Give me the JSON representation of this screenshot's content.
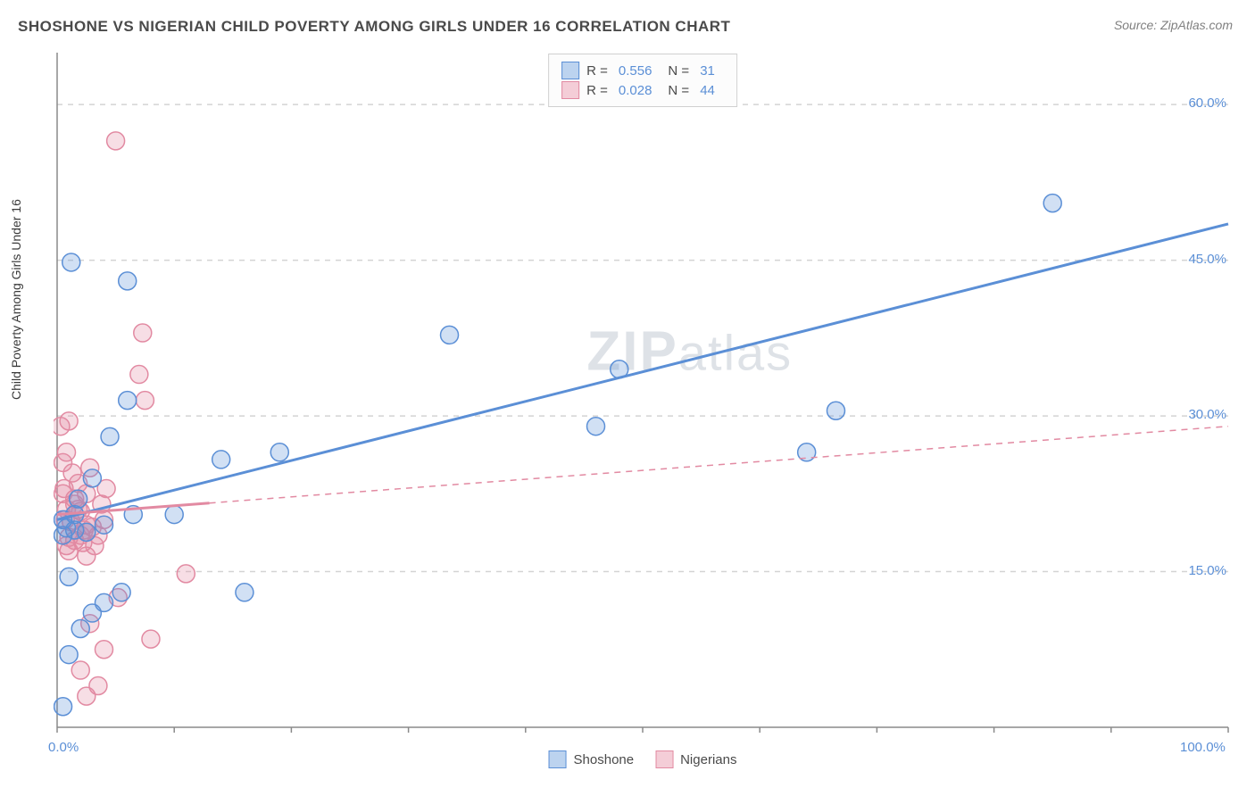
{
  "title": "SHOSHONE VS NIGERIAN CHILD POVERTY AMONG GIRLS UNDER 16 CORRELATION CHART",
  "source": "Source: ZipAtlas.com",
  "y_axis_label": "Child Poverty Among Girls Under 16",
  "watermark": {
    "bold": "ZIP",
    "light": "atlas"
  },
  "chart": {
    "type": "scatter",
    "background_color": "#ffffff",
    "grid_color": "#d4d4d4",
    "axis_color": "#8a8a8a",
    "tick_label_color": "#5b8fd6",
    "title_color": "#4a4a4a",
    "title_fontsize": 17,
    "label_fontsize": 14,
    "tick_fontsize": 15,
    "xlim": [
      0,
      100
    ],
    "ylim": [
      0,
      65
    ],
    "y_gridlines": [
      15,
      30,
      45,
      60,
      65.5
    ],
    "y_tick_labels": [
      {
        "value": 15,
        "label": "15.0%"
      },
      {
        "value": 30,
        "label": "30.0%"
      },
      {
        "value": 45,
        "label": "45.0%"
      },
      {
        "value": 60,
        "label": "60.0%"
      }
    ],
    "x_ticks": [
      0,
      10,
      20,
      30,
      40,
      50,
      60,
      70,
      80,
      90,
      100
    ],
    "x_tick_labels": [
      {
        "value": 0,
        "label": "0.0%"
      },
      {
        "value": 100,
        "label": "100.0%"
      }
    ],
    "marker_radius": 10,
    "marker_stroke_width": 1.5,
    "marker_fill_opacity": 0.28,
    "line_width": 3,
    "series": [
      {
        "name": "Shoshone",
        "color": "#5b8fd6",
        "fill": "#bcd3ef",
        "r_value": "0.556",
        "n_value": "31",
        "trendline": {
          "x1": 0,
          "y1": 20.0,
          "x2": 100,
          "y2": 48.5,
          "solid_until_x": 100
        },
        "points": [
          {
            "x": 0.5,
            "y": 2.0
          },
          {
            "x": 1.0,
            "y": 7.0
          },
          {
            "x": 2.0,
            "y": 9.5
          },
          {
            "x": 3.0,
            "y": 11.0
          },
          {
            "x": 4.0,
            "y": 12.0
          },
          {
            "x": 5.5,
            "y": 13.0
          },
          {
            "x": 1.0,
            "y": 14.5
          },
          {
            "x": 0.5,
            "y": 18.5
          },
          {
            "x": 1.5,
            "y": 19.0
          },
          {
            "x": 0.5,
            "y": 20.0
          },
          {
            "x": 4.0,
            "y": 19.5
          },
          {
            "x": 3.0,
            "y": 24.0
          },
          {
            "x": 1.2,
            "y": 44.8
          },
          {
            "x": 6.0,
            "y": 43.0
          },
          {
            "x": 6.0,
            "y": 31.5
          },
          {
            "x": 4.5,
            "y": 28.0
          },
          {
            "x": 6.5,
            "y": 20.5
          },
          {
            "x": 10.0,
            "y": 20.5
          },
          {
            "x": 16.0,
            "y": 13.0
          },
          {
            "x": 14.0,
            "y": 25.8
          },
          {
            "x": 19.0,
            "y": 26.5
          },
          {
            "x": 33.5,
            "y": 37.8
          },
          {
            "x": 46.0,
            "y": 29.0
          },
          {
            "x": 48.0,
            "y": 34.5
          },
          {
            "x": 64.0,
            "y": 26.5
          },
          {
            "x": 66.5,
            "y": 30.5
          },
          {
            "x": 85.0,
            "y": 50.5
          },
          {
            "x": 1.8,
            "y": 22.0
          },
          {
            "x": 2.5,
            "y": 18.8
          },
          {
            "x": 1.5,
            "y": 20.5
          },
          {
            "x": 0.8,
            "y": 19.2
          }
        ]
      },
      {
        "name": "Nigerians",
        "color": "#e28aa2",
        "fill": "#f4cdd7",
        "r_value": "0.028",
        "n_value": "44",
        "trendline": {
          "x1": 0,
          "y1": 20.5,
          "x2": 100,
          "y2": 29.0,
          "solid_until_x": 13
        },
        "points": [
          {
            "x": 2.5,
            "y": 3.0
          },
          {
            "x": 3.5,
            "y": 4.0
          },
          {
            "x": 2.0,
            "y": 5.5
          },
          {
            "x": 4.0,
            "y": 7.5
          },
          {
            "x": 8.0,
            "y": 8.5
          },
          {
            "x": 2.8,
            "y": 10.0
          },
          {
            "x": 5.2,
            "y": 12.5
          },
          {
            "x": 11.0,
            "y": 14.8
          },
          {
            "x": 0.8,
            "y": 17.5
          },
          {
            "x": 1.5,
            "y": 18.0
          },
          {
            "x": 2.3,
            "y": 19.0
          },
          {
            "x": 3.0,
            "y": 19.3
          },
          {
            "x": 4.0,
            "y": 20.0
          },
          {
            "x": 2.0,
            "y": 20.8
          },
          {
            "x": 0.8,
            "y": 21.0
          },
          {
            "x": 1.5,
            "y": 22.0
          },
          {
            "x": 2.8,
            "y": 25.0
          },
          {
            "x": 0.5,
            "y": 25.5
          },
          {
            "x": 0.8,
            "y": 26.5
          },
          {
            "x": 1.3,
            "y": 24.5
          },
          {
            "x": 1.8,
            "y": 23.5
          },
          {
            "x": 0.6,
            "y": 23.0
          },
          {
            "x": 0.3,
            "y": 29.0
          },
          {
            "x": 1.0,
            "y": 29.5
          },
          {
            "x": 7.5,
            "y": 31.5
          },
          {
            "x": 7.0,
            "y": 34.0
          },
          {
            "x": 7.3,
            "y": 38.0
          },
          {
            "x": 5.0,
            "y": 56.5
          },
          {
            "x": 1.0,
            "y": 17.0
          },
          {
            "x": 2.2,
            "y": 17.8
          },
          {
            "x": 3.5,
            "y": 18.5
          },
          {
            "x": 2.5,
            "y": 16.5
          },
          {
            "x": 1.2,
            "y": 19.8
          },
          {
            "x": 3.8,
            "y": 21.5
          },
          {
            "x": 0.5,
            "y": 22.5
          },
          {
            "x": 1.8,
            "y": 21.0
          },
          {
            "x": 2.5,
            "y": 19.5
          },
          {
            "x": 4.2,
            "y": 23.0
          },
          {
            "x": 1.5,
            "y": 21.5
          },
          {
            "x": 2.0,
            "y": 18.5
          },
          {
            "x": 3.2,
            "y": 17.5
          },
          {
            "x": 1.0,
            "y": 18.3
          },
          {
            "x": 0.7,
            "y": 20.0
          },
          {
            "x": 2.5,
            "y": 22.5
          }
        ]
      }
    ]
  },
  "legend_top": {
    "r_label": "R =",
    "n_label": "N ="
  },
  "legend_bottom": [
    {
      "label": "Shoshone",
      "color": "#5b8fd6",
      "fill": "#bcd3ef"
    },
    {
      "label": "Nigerians",
      "color": "#e28aa2",
      "fill": "#f4cdd7"
    }
  ]
}
